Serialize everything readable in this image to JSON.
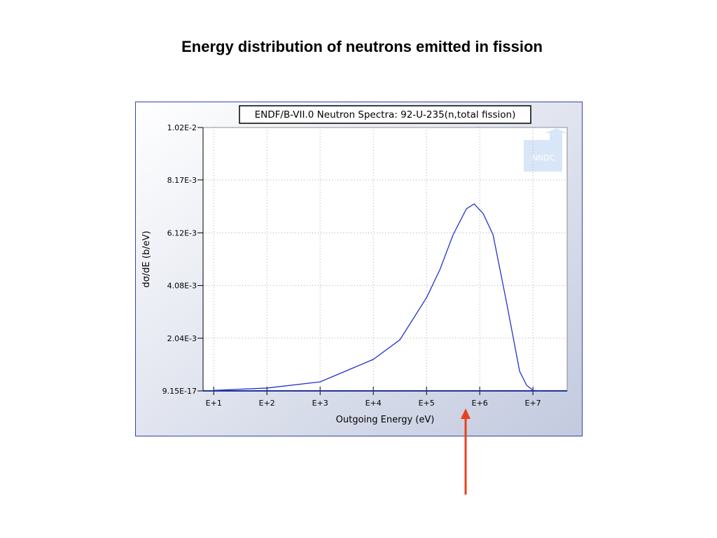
{
  "title": "Energy distribution of neutrons emitted in fission",
  "chart_data": {
    "type": "line",
    "title": "ENDF/B-VII.0 Neutron Spectra: 92-U-235(n,total fission)",
    "logo": "NNDC",
    "x_label": "Outgoing Energy (eV)",
    "y_label": "dσ/dE (b/eV)",
    "x_log": true,
    "grid": true,
    "xlim": [
      6.3,
      44000000
    ],
    "ylim": [
      9.15e-17,
      0.0102
    ],
    "xticks": [
      {
        "value": 10,
        "label": "E+1"
      },
      {
        "value": 100,
        "label": "E+2"
      },
      {
        "value": 1000,
        "label": "E+3"
      },
      {
        "value": 10000,
        "label": "E+4"
      },
      {
        "value": 100000,
        "label": "E+5"
      },
      {
        "value": 1000000,
        "label": "E+6"
      },
      {
        "value": 10000000,
        "label": "E+7"
      }
    ],
    "yticks": [
      {
        "value": 9.15e-17,
        "label": "9.15E-17"
      },
      {
        "value": 0.00204,
        "label": "2.04E-3"
      },
      {
        "value": 0.00408,
        "label": "4.08E-3"
      },
      {
        "value": 0.00612,
        "label": "6.12E-3"
      },
      {
        "value": 0.00817,
        "label": "8.17E-3"
      },
      {
        "value": 0.0102,
        "label": "1.02E-2"
      }
    ],
    "x": [
      10,
      100,
      1000,
      10000,
      31623,
      100000,
      177828,
      316228,
      562341,
      785000,
      1165000,
      1778279,
      3162278,
      5623413,
      7600000,
      10000000,
      15000000
    ],
    "series": [
      {
        "color": "#2233cc",
        "values": [
          2e-05,
          0.00011,
          0.00035,
          0.00122,
          0.00198,
          0.00361,
          0.00469,
          0.00605,
          0.00705,
          0.00724,
          0.00686,
          0.00605,
          0.00347,
          0.00076,
          0.00022,
          2e-05,
          0.0
        ]
      }
    ]
  }
}
